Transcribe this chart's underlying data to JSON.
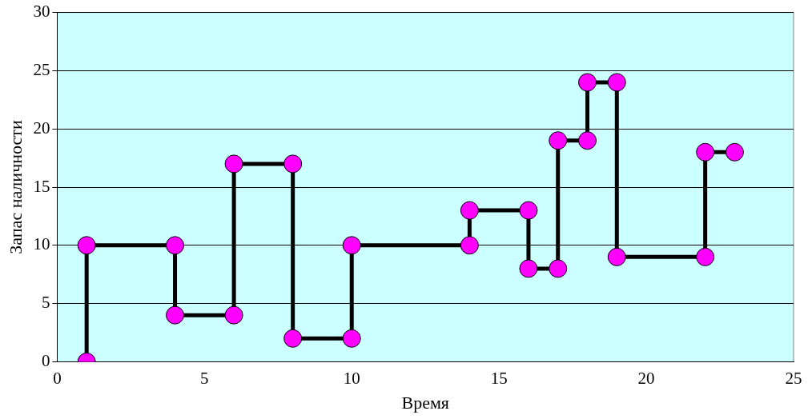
{
  "chart_data": {
    "type": "line",
    "xlabel": "Время",
    "ylabel": "Запас наличности",
    "x": [
      1,
      1,
      4,
      4,
      6,
      6,
      8,
      8,
      10,
      10,
      14,
      14,
      16,
      16,
      17,
      17,
      18,
      18,
      19,
      19,
      22,
      22,
      23
    ],
    "series": [
      {
        "color": "#ff00ff",
        "values": [
          0,
          10,
          10,
          4,
          4,
          17,
          17,
          2,
          2,
          10,
          10,
          13,
          13,
          8,
          8,
          19,
          19,
          24,
          24,
          9,
          9,
          18,
          18
        ]
      }
    ],
    "xlim": [
      0,
      25
    ],
    "xticks": [
      0,
      5,
      10,
      15,
      20,
      25
    ],
    "ylim": [
      0,
      30
    ],
    "yticks": [
      0,
      5,
      10,
      15,
      20,
      25,
      30
    ],
    "grid": "y",
    "legend": false,
    "marker": "circle",
    "line_style": "solid"
  }
}
